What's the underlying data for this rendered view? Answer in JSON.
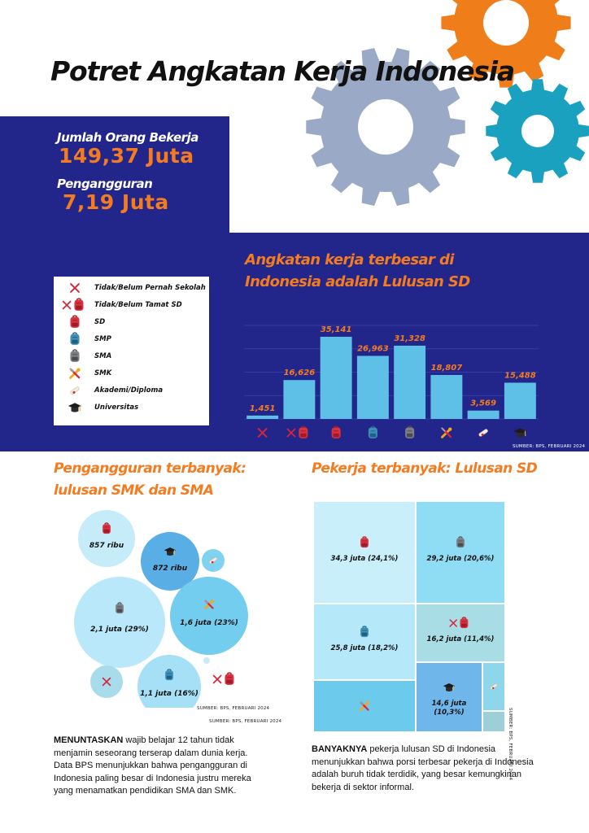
{
  "title": "Potret Angkatan Kerja Indonesia",
  "stats": {
    "employed_label": "Jumlah Orang Bekerja",
    "employed_value": "149,37 Juta",
    "unemployed_label": "Pengangguran",
    "unemployed_value": "7,19 Juta"
  },
  "legend": [
    {
      "label": "Tidak/Belum Pernah Sekolah",
      "icon": "cross-icon"
    },
    {
      "label": "Tidak/Belum Tamat SD",
      "icon": "cross-backpack-icon"
    },
    {
      "label": "SD",
      "icon": "backpack-red-icon"
    },
    {
      "label": "SMP",
      "icon": "backpack-blue-icon"
    },
    {
      "label": "SMA",
      "icon": "backpack-grey-icon"
    },
    {
      "label": "SMK",
      "icon": "tools-icon"
    },
    {
      "label": "Akademi/Diploma",
      "icon": "diploma-icon"
    },
    {
      "label": "Universitas",
      "icon": "graduation-cap-icon"
    }
  ],
  "chart_data": [
    {
      "type": "bar",
      "title": "Angkatan kerja terbesar di Indonesia adalah Lulusan SD",
      "title_lines": [
        "Angkatan kerja terbesar di",
        "Indonesia adalah Lulusan SD"
      ],
      "categories": [
        "Tidak/Belum Pernah Sekolah",
        "Tidak/Belum Tamat SD",
        "SD",
        "SMP",
        "SMA",
        "SMK",
        "Akademi/Diploma",
        "Universitas"
      ],
      "category_icons": [
        "cross-icon",
        "cross-backpack-icon",
        "backpack-red-icon",
        "backpack-blue-icon",
        "backpack-grey-icon",
        "tools-icon",
        "diploma-icon",
        "graduation-cap-icon"
      ],
      "values": [
        1451,
        16626,
        35141,
        26963,
        31328,
        18807,
        3569,
        15488
      ],
      "value_labels": [
        "1,451",
        "16,626",
        "35,141",
        "26,963",
        "31,328",
        "18,807",
        "3,569",
        "15,488"
      ],
      "ylim": [
        0,
        40000
      ],
      "grid": true,
      "legend_position": "left",
      "bar_color": "#5ec0e6",
      "source": "SUMBER: BPS, FEBRUARI 2024"
    },
    {
      "type": "bubble",
      "title": "Pengangguran terbanyak: lulusan SMK dan SMA",
      "title_lines": [
        "Pengangguran terbanyak:",
        "lulusan SMK dan SMA"
      ],
      "items": [
        {
          "category": "SD",
          "icon": "backpack-red-icon",
          "label": "857 ribu",
          "color": "#c6ecfa"
        },
        {
          "category": "Universitas",
          "icon": "graduation-cap-icon",
          "label": "872 ribu",
          "color": "#5aaee6"
        },
        {
          "category": "Akademi/Diploma",
          "icon": "diploma-icon",
          "label": "",
          "color": "#7fd2f0"
        },
        {
          "category": "SMA",
          "icon": "backpack-grey-icon",
          "label": "2,1 juta (29%)",
          "color": "#b8e8fa"
        },
        {
          "category": "SMK",
          "icon": "tools-icon",
          "label": "1,6 juta (23%)",
          "color": "#73cdee"
        },
        {
          "category": "Tidak/Belum Pernah Sekolah",
          "icon": "cross-icon",
          "label": "",
          "color": "#a8dcea"
        },
        {
          "category": "SMP",
          "icon": "backpack-blue-icon",
          "label": "1,1 juta (16%)",
          "color": "#a6e0f6"
        },
        {
          "category": "Tidak/Belum Tamat SD",
          "icon": "cross-backpack-icon",
          "label": "",
          "color": ""
        }
      ],
      "source": "SUMBER: BPS, FEBRUARI 2024",
      "source_repeat": "SUMBER: BPS, FEBRUARI 2024"
    },
    {
      "type": "treemap",
      "title": "Pekerja terbanyak: Lulusan SD",
      "items": [
        {
          "category": "SD",
          "icon": "backpack-red-icon",
          "label": "34,3 juta (24,1%)",
          "color": "#c9effb"
        },
        {
          "category": "SMA",
          "icon": "backpack-grey-icon",
          "label": "29,2 juta (20,6%)",
          "color": "#8fdcf5"
        },
        {
          "category": "SMP",
          "icon": "backpack-blue-icon",
          "label": "25,8 juta (18,2%)",
          "color": "#b5e8f9"
        },
        {
          "category": "Tidak/Belum Tamat SD",
          "icon": "cross-backpack-icon",
          "label": "16,2 juta (11,4%)",
          "color": "#a8dde6"
        },
        {
          "category": "SMK",
          "icon": "tools-icon",
          "label": "",
          "color": "#6ccbec"
        },
        {
          "category": "Universitas",
          "icon": "graduation-cap-icon",
          "label": "14,6 juta (10,3%)",
          "color": "#6fb6ea"
        },
        {
          "category": "Akademi/Diploma",
          "icon": "diploma-icon",
          "label": "",
          "color": "#8ed6ec"
        },
        {
          "category": "Tidak/Belum Pernah Sekolah",
          "icon": "",
          "label": "",
          "color": "#9ccfd8"
        }
      ],
      "source": "SUMBER: BPS, FEBRUARI 2024"
    }
  ],
  "paragraphs": {
    "unemployment_lead": "MENUNTASKAN",
    "unemployment_body": " wajib belajar 12 tahun tidak menjamin seseorang terserap dalam dunia kerja. Data BPS menunjukkan bahwa pengangguran di Indonesia paling besar di Indonesia justru mereka yang menamatkan pendidikan SMA dan SMK.",
    "workers_lead": "BANYAKNYA",
    "workers_body": " pekerja lulusan SD di Indonesia menunjukkan bahwa porsi terbesar pekerja di Indonesia adalah buruh tidak terdidik, yang besar kemungkinan bekerja di sektor informal."
  },
  "colors": {
    "navy": "#22268a",
    "orange": "#f47b20",
    "gear_orange": "#ef7d1a",
    "gear_grey": "#9aa9c6",
    "gear_teal": "#1aa1c0",
    "bar": "#5ec0e6"
  }
}
